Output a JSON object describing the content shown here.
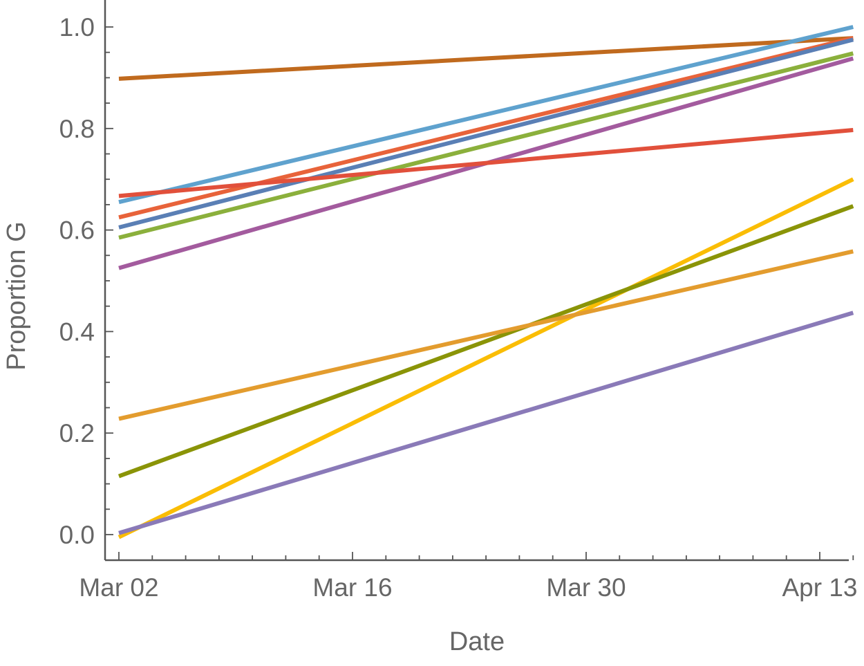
{
  "chart_data": {
    "type": "line",
    "title": "",
    "xlabel": "Date",
    "ylabel": "Proportion G",
    "x_ticks": [
      "Mar 02",
      "Mar 16",
      "Mar 30",
      "Apr 13"
    ],
    "y_ticks": [
      "0.0",
      "0.2",
      "0.4",
      "0.6",
      "0.8",
      "1.0"
    ],
    "xlim": [
      "2020-03-02",
      "2020-04-16"
    ],
    "ylim": [
      -0.05,
      1.05
    ],
    "grid": false,
    "series": [
      {
        "color": "#C06A1E",
        "x": [
          "2020-03-02",
          "2020-04-15"
        ],
        "y": [
          0.898,
          0.978
        ]
      },
      {
        "color": "#5FA2CE",
        "x": [
          "2020-03-02",
          "2020-04-15"
        ],
        "y": [
          0.655,
          1.0
        ]
      },
      {
        "color": "#E8633A",
        "x": [
          "2020-03-02",
          "2020-04-15"
        ],
        "y": [
          0.625,
          0.978
        ]
      },
      {
        "color": "#5A7FB5",
        "x": [
          "2020-03-02",
          "2020-04-15"
        ],
        "y": [
          0.605,
          0.975
        ]
      },
      {
        "color": "#8BB03C",
        "x": [
          "2020-03-02",
          "2020-04-15"
        ],
        "y": [
          0.585,
          0.948
        ]
      },
      {
        "color": "#A35B9E",
        "x": [
          "2020-03-02",
          "2020-04-15"
        ],
        "y": [
          0.525,
          0.938
        ]
      },
      {
        "color": "#E1503B",
        "x": [
          "2020-03-02",
          "2020-04-15"
        ],
        "y": [
          0.667,
          0.797
        ]
      },
      {
        "color": "#FABD05",
        "x": [
          "2020-03-02",
          "2020-04-15"
        ],
        "y": [
          -0.005,
          0.7
        ]
      },
      {
        "color": "#8A9407",
        "x": [
          "2020-03-02",
          "2020-04-15"
        ],
        "y": [
          0.115,
          0.647
        ]
      },
      {
        "color": "#E39C2E",
        "x": [
          "2020-03-02",
          "2020-04-15"
        ],
        "y": [
          0.228,
          0.558
        ]
      },
      {
        "color": "#8A7AB8",
        "x": [
          "2020-03-02",
          "2020-04-15"
        ],
        "y": [
          0.003,
          0.437
        ]
      }
    ]
  }
}
